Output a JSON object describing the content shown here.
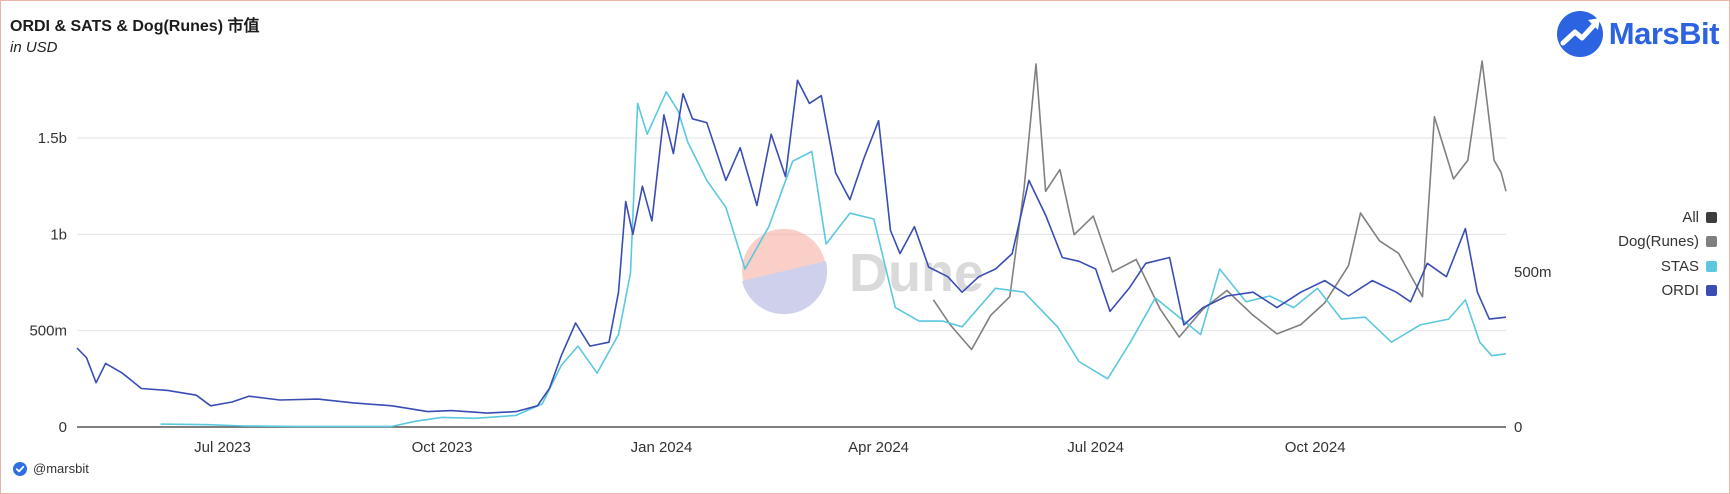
{
  "header": {
    "title": "ORDI & SATS & Dog(Runes) 市值",
    "subtitle": "in USD",
    "brand": "MarsBit",
    "brand_color": "#2b63e0"
  },
  "footer": {
    "handle": "@marsbit"
  },
  "watermark": {
    "text": "Dune"
  },
  "chart_data": {
    "type": "line",
    "title": "ORDI & SATS & Dog(Runes) 市值",
    "subtitle": "in USD",
    "x_tick_labels": [
      "Jul 2023",
      "Oct 2023",
      "Jan 2024",
      "Apr 2024",
      "Jul 2024",
      "Oct 2024"
    ],
    "x_tick_dates": [
      "2023-07-01",
      "2023-10-01",
      "2024-01-01",
      "2024-04-01",
      "2024-07-01",
      "2024-10-01"
    ],
    "x_range": [
      "2023-05-01",
      "2024-12-20"
    ],
    "left_axis": {
      "ticks": [
        0,
        500000000,
        1000000000,
        1500000000
      ],
      "tick_labels": [
        "0",
        "500m",
        "1b",
        "1.5b"
      ],
      "ylim": [
        0,
        1900000000
      ]
    },
    "right_axis": {
      "ticks": [
        0,
        500000000
      ],
      "tick_labels": [
        "0",
        "500m"
      ],
      "ylim": [
        0,
        1180000000
      ]
    },
    "grid": true,
    "legend": {
      "position": "right",
      "entries": [
        "All",
        "Dog(Runes)",
        "STAS",
        "ORDI"
      ]
    },
    "colors": {
      "All": "#3d3d3d",
      "Dog(Runes)": "#808080",
      "STAS": "#5bc8df",
      "ORDI": "#3a4db5"
    },
    "series": [
      {
        "name": "ORDI",
        "axis": "left",
        "color": "#3a4db5",
        "points": [
          [
            "2023-05-01",
            410000000
          ],
          [
            "2023-05-05",
            360000000
          ],
          [
            "2023-05-09",
            230000000
          ],
          [
            "2023-05-13",
            330000000
          ],
          [
            "2023-05-20",
            280000000
          ],
          [
            "2023-05-28",
            200000000
          ],
          [
            "2023-06-08",
            190000000
          ],
          [
            "2023-06-20",
            165000000
          ],
          [
            "2023-06-26",
            110000000
          ],
          [
            "2023-07-05",
            130000000
          ],
          [
            "2023-07-12",
            160000000
          ],
          [
            "2023-07-25",
            140000000
          ],
          [
            "2023-08-10",
            145000000
          ],
          [
            "2023-08-25",
            125000000
          ],
          [
            "2023-09-10",
            110000000
          ],
          [
            "2023-09-25",
            80000000
          ],
          [
            "2023-10-05",
            85000000
          ],
          [
            "2023-10-20",
            72000000
          ],
          [
            "2023-11-01",
            80000000
          ],
          [
            "2023-11-10",
            110000000
          ],
          [
            "2023-11-15",
            200000000
          ],
          [
            "2023-11-20",
            370000000
          ],
          [
            "2023-11-26",
            540000000
          ],
          [
            "2023-12-02",
            420000000
          ],
          [
            "2023-12-10",
            440000000
          ],
          [
            "2023-12-14",
            700000000
          ],
          [
            "2023-12-17",
            1170000000
          ],
          [
            "2023-12-20",
            1000000000
          ],
          [
            "2023-12-24",
            1250000000
          ],
          [
            "2023-12-28",
            1070000000
          ],
          [
            "2024-01-02",
            1620000000
          ],
          [
            "2024-01-06",
            1420000000
          ],
          [
            "2024-01-10",
            1730000000
          ],
          [
            "2024-01-14",
            1600000000
          ],
          [
            "2024-01-20",
            1580000000
          ],
          [
            "2024-01-28",
            1280000000
          ],
          [
            "2024-02-03",
            1450000000
          ],
          [
            "2024-02-10",
            1150000000
          ],
          [
            "2024-02-16",
            1520000000
          ],
          [
            "2024-02-22",
            1300000000
          ],
          [
            "2024-02-27",
            1800000000
          ],
          [
            "2024-03-03",
            1680000000
          ],
          [
            "2024-03-08",
            1720000000
          ],
          [
            "2024-03-14",
            1320000000
          ],
          [
            "2024-03-20",
            1180000000
          ],
          [
            "2024-03-26",
            1400000000
          ],
          [
            "2024-04-01",
            1590000000
          ],
          [
            "2024-04-06",
            1020000000
          ],
          [
            "2024-04-10",
            900000000
          ],
          [
            "2024-04-16",
            1040000000
          ],
          [
            "2024-04-22",
            830000000
          ],
          [
            "2024-04-30",
            780000000
          ],
          [
            "2024-05-06",
            700000000
          ],
          [
            "2024-05-13",
            780000000
          ],
          [
            "2024-05-20",
            820000000
          ],
          [
            "2024-05-27",
            900000000
          ],
          [
            "2024-06-03",
            1280000000
          ],
          [
            "2024-06-10",
            1100000000
          ],
          [
            "2024-06-17",
            880000000
          ],
          [
            "2024-06-24",
            860000000
          ],
          [
            "2024-07-01",
            820000000
          ],
          [
            "2024-07-07",
            600000000
          ],
          [
            "2024-07-15",
            720000000
          ],
          [
            "2024-07-22",
            850000000
          ],
          [
            "2024-08-01",
            880000000
          ],
          [
            "2024-08-07",
            530000000
          ],
          [
            "2024-08-15",
            620000000
          ],
          [
            "2024-08-25",
            680000000
          ],
          [
            "2024-09-05",
            700000000
          ],
          [
            "2024-09-15",
            620000000
          ],
          [
            "2024-09-25",
            700000000
          ],
          [
            "2024-10-05",
            760000000
          ],
          [
            "2024-10-15",
            680000000
          ],
          [
            "2024-10-25",
            760000000
          ],
          [
            "2024-11-04",
            700000000
          ],
          [
            "2024-11-10",
            650000000
          ],
          [
            "2024-11-17",
            850000000
          ],
          [
            "2024-11-25",
            780000000
          ],
          [
            "2024-12-03",
            1030000000
          ],
          [
            "2024-12-08",
            700000000
          ],
          [
            "2024-12-13",
            560000000
          ],
          [
            "2024-12-20",
            570000000
          ]
        ]
      },
      {
        "name": "STAS",
        "axis": "left",
        "color": "#5bc8df",
        "points": [
          [
            "2023-06-05",
            15000000
          ],
          [
            "2023-06-25",
            12000000
          ],
          [
            "2023-07-10",
            5000000
          ],
          [
            "2023-08-01",
            3000000
          ],
          [
            "2023-09-10",
            3000000
          ],
          [
            "2023-09-20",
            30000000
          ],
          [
            "2023-10-01",
            50000000
          ],
          [
            "2023-10-15",
            45000000
          ],
          [
            "2023-11-01",
            60000000
          ],
          [
            "2023-11-12",
            120000000
          ],
          [
            "2023-11-20",
            320000000
          ],
          [
            "2023-11-27",
            420000000
          ],
          [
            "2023-12-05",
            280000000
          ],
          [
            "2023-12-14",
            480000000
          ],
          [
            "2023-12-19",
            800000000
          ],
          [
            "2023-12-22",
            1680000000
          ],
          [
            "2023-12-26",
            1520000000
          ],
          [
            "2024-01-03",
            1740000000
          ],
          [
            "2024-01-08",
            1640000000
          ],
          [
            "2024-01-12",
            1480000000
          ],
          [
            "2024-01-20",
            1280000000
          ],
          [
            "2024-01-28",
            1140000000
          ],
          [
            "2024-02-05",
            820000000
          ],
          [
            "2024-02-15",
            1040000000
          ],
          [
            "2024-02-25",
            1380000000
          ],
          [
            "2024-03-04",
            1430000000
          ],
          [
            "2024-03-10",
            950000000
          ],
          [
            "2024-03-20",
            1110000000
          ],
          [
            "2024-03-30",
            1080000000
          ],
          [
            "2024-04-08",
            620000000
          ],
          [
            "2024-04-18",
            550000000
          ],
          [
            "2024-04-28",
            550000000
          ],
          [
            "2024-05-06",
            520000000
          ],
          [
            "2024-05-20",
            720000000
          ],
          [
            "2024-06-01",
            700000000
          ],
          [
            "2024-06-15",
            520000000
          ],
          [
            "2024-06-24",
            340000000
          ],
          [
            "2024-07-06",
            250000000
          ],
          [
            "2024-07-16",
            450000000
          ],
          [
            "2024-07-26",
            670000000
          ],
          [
            "2024-08-05",
            570000000
          ],
          [
            "2024-08-14",
            480000000
          ],
          [
            "2024-08-22",
            820000000
          ],
          [
            "2024-09-02",
            650000000
          ],
          [
            "2024-09-12",
            680000000
          ],
          [
            "2024-09-22",
            620000000
          ],
          [
            "2024-10-02",
            720000000
          ],
          [
            "2024-10-12",
            560000000
          ],
          [
            "2024-10-22",
            570000000
          ],
          [
            "2024-11-02",
            440000000
          ],
          [
            "2024-11-14",
            530000000
          ],
          [
            "2024-11-26",
            560000000
          ],
          [
            "2024-12-03",
            660000000
          ],
          [
            "2024-12-09",
            440000000
          ],
          [
            "2024-12-14",
            370000000
          ],
          [
            "2024-12-20",
            380000000
          ]
        ]
      },
      {
        "name": "Dog(Runes)",
        "axis": "right",
        "color": "#808080",
        "points": [
          [
            "2024-04-24",
            410000000
          ],
          [
            "2024-05-01",
            330000000
          ],
          [
            "2024-05-10",
            250000000
          ],
          [
            "2024-05-18",
            360000000
          ],
          [
            "2024-05-26",
            420000000
          ],
          [
            "2024-06-01",
            770000000
          ],
          [
            "2024-06-06",
            1170000000
          ],
          [
            "2024-06-10",
            760000000
          ],
          [
            "2024-06-16",
            830000000
          ],
          [
            "2024-06-22",
            620000000
          ],
          [
            "2024-06-30",
            680000000
          ],
          [
            "2024-07-08",
            500000000
          ],
          [
            "2024-07-18",
            540000000
          ],
          [
            "2024-07-28",
            380000000
          ],
          [
            "2024-08-05",
            290000000
          ],
          [
            "2024-08-15",
            380000000
          ],
          [
            "2024-08-25",
            440000000
          ],
          [
            "2024-09-05",
            360000000
          ],
          [
            "2024-09-15",
            300000000
          ],
          [
            "2024-09-25",
            330000000
          ],
          [
            "2024-10-05",
            400000000
          ],
          [
            "2024-10-15",
            520000000
          ],
          [
            "2024-10-20",
            690000000
          ],
          [
            "2024-10-28",
            600000000
          ],
          [
            "2024-11-05",
            560000000
          ],
          [
            "2024-11-15",
            420000000
          ],
          [
            "2024-11-20",
            1000000000
          ],
          [
            "2024-11-28",
            800000000
          ],
          [
            "2024-12-04",
            860000000
          ],
          [
            "2024-12-10",
            1180000000
          ],
          [
            "2024-12-15",
            860000000
          ],
          [
            "2024-12-18",
            820000000
          ],
          [
            "2024-12-20",
            760000000
          ]
        ]
      }
    ]
  }
}
